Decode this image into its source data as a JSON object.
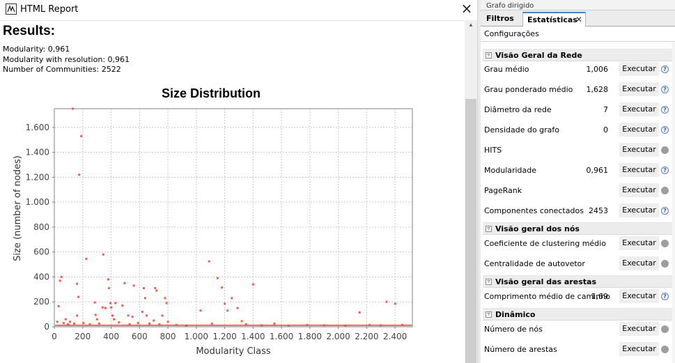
{
  "report": {
    "window_title": "HTML Report",
    "heading": "Results:",
    "metrics": [
      "Modularity: 0,961",
      "Modularity with resolution: 0,961",
      "Number of Communities: 2522"
    ]
  },
  "chart_data": {
    "type": "scatter",
    "title": "Size Distribution",
    "xlabel": "Modularity Class",
    "ylabel": "Size (number of nodes)",
    "xlim": [
      0,
      2522
    ],
    "ylim": [
      0,
      1750
    ],
    "x_ticks": [
      0,
      200,
      400,
      600,
      800,
      1000,
      1200,
      1400,
      1600,
      1800,
      2000,
      2200,
      2400
    ],
    "x_tick_labels": [
      "0",
      "200",
      "400",
      "600",
      "800",
      "1.000",
      "1.200",
      "1.400",
      "1.600",
      "1.800",
      "2.000",
      "2.200",
      "2.400"
    ],
    "y_ticks": [
      0,
      200,
      400,
      600,
      800,
      1000,
      1200,
      1400,
      1600
    ],
    "y_tick_labels": [
      "0",
      "200",
      "400",
      "600",
      "800",
      "1.000",
      "1.200",
      "1.400",
      "1.600"
    ],
    "grid": true,
    "point_color": "#ff5555",
    "points": [
      [
        130,
        1750
      ],
      [
        190,
        1530
      ],
      [
        175,
        1220
      ],
      [
        225,
        545
      ],
      [
        345,
        580
      ],
      [
        40,
        370
      ],
      [
        50,
        400
      ],
      [
        30,
        165
      ],
      [
        160,
        345
      ],
      [
        170,
        240
      ],
      [
        160,
        90
      ],
      [
        110,
        40
      ],
      [
        80,
        60
      ],
      [
        20,
        40
      ],
      [
        285,
        195
      ],
      [
        290,
        95
      ],
      [
        300,
        60
      ],
      [
        340,
        155
      ],
      [
        360,
        150
      ],
      [
        380,
        380
      ],
      [
        385,
        310
      ],
      [
        395,
        190
      ],
      [
        400,
        155
      ],
      [
        410,
        90
      ],
      [
        420,
        60
      ],
      [
        430,
        190
      ],
      [
        480,
        170
      ],
      [
        495,
        350
      ],
      [
        520,
        90
      ],
      [
        550,
        80
      ],
      [
        560,
        330
      ],
      [
        620,
        120
      ],
      [
        630,
        310
      ],
      [
        640,
        230
      ],
      [
        650,
        90
      ],
      [
        700,
        50
      ],
      [
        710,
        310
      ],
      [
        720,
        290
      ],
      [
        760,
        90
      ],
      [
        780,
        230
      ],
      [
        790,
        190
      ],
      [
        800,
        40
      ],
      [
        1030,
        130
      ],
      [
        1090,
        525
      ],
      [
        1150,
        390
      ],
      [
        1180,
        315
      ],
      [
        1200,
        185
      ],
      [
        1220,
        130
      ],
      [
        1250,
        230
      ],
      [
        1290,
        150
      ],
      [
        1320,
        45
      ],
      [
        1400,
        340
      ],
      [
        1550,
        25
      ],
      [
        1780,
        15
      ],
      [
        2150,
        115
      ],
      [
        2220,
        15
      ],
      [
        2340,
        200
      ],
      [
        2400,
        185
      ],
      [
        2450,
        15
      ],
      [
        65,
        30
      ],
      [
        95,
        20
      ],
      [
        140,
        25
      ],
      [
        205,
        30
      ],
      [
        250,
        20
      ],
      [
        315,
        25
      ],
      [
        455,
        35
      ],
      [
        530,
        20
      ],
      [
        590,
        30
      ],
      [
        670,
        25
      ],
      [
        740,
        20
      ],
      [
        860,
        15
      ],
      [
        930,
        10
      ],
      [
        1110,
        25
      ],
      [
        1350,
        20
      ],
      [
        1460,
        12
      ],
      [
        1650,
        10
      ],
      [
        1900,
        12
      ],
      [
        2050,
        10
      ],
      [
        2300,
        12
      ]
    ]
  },
  "stats": {
    "top_strip": "Grafo dirigido",
    "tabs": [
      {
        "label": "Filtros"
      },
      {
        "label": "Estatísticas"
      }
    ],
    "tab_close": "✕",
    "config_label": "Configurações",
    "run_label": "Executar",
    "sections": [
      {
        "title": "Visão Geral da Rede",
        "rows": [
          {
            "label": "Grau médio",
            "value": "1,006",
            "icon": "help"
          },
          {
            "label": "Grau ponderado médio",
            "value": "1,628",
            "icon": "help"
          },
          {
            "label": "Diâmetro da rede",
            "value": "7",
            "icon": "help"
          },
          {
            "label": "Densidade do grafo",
            "value": "0",
            "icon": "help"
          },
          {
            "label": "HITS",
            "value": "",
            "icon": "dot"
          },
          {
            "label": "Modularidade",
            "value": "0,961",
            "icon": "help"
          },
          {
            "label": "PageRank",
            "value": "",
            "icon": "dot"
          },
          {
            "label": "Componentes conectados",
            "value": "2453",
            "icon": "help"
          }
        ]
      },
      {
        "title": "Visão geral dos nós",
        "rows": [
          {
            "label": "Coeficiente de clustering médio",
            "value": "",
            "icon": "dot"
          },
          {
            "label": "Centralidade de autovetor",
            "value": "",
            "icon": "dot"
          }
        ]
      },
      {
        "title": "Visão geral das arestas",
        "rows": [
          {
            "label": "Comprimento médio de caminho",
            "value": "1,69",
            "icon": "help"
          }
        ]
      },
      {
        "title": "Dinâmico",
        "rows": [
          {
            "label": "Número de nós",
            "value": "",
            "icon": "dot"
          },
          {
            "label": "Número de arestas",
            "value": "",
            "icon": "dot"
          }
        ]
      }
    ]
  }
}
